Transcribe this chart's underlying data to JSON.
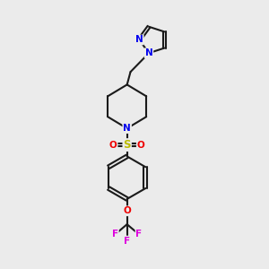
{
  "bg_color": "#ebebeb",
  "bond_color": "#1a1a1a",
  "N_color": "#0000ee",
  "O_color": "#ee0000",
  "S_color": "#bbbb00",
  "F_color": "#dd00dd",
  "bond_width": 1.5,
  "figsize": [
    3.0,
    3.0
  ],
  "dpi": 100,
  "xlim": [
    0,
    10
  ],
  "ylim": [
    0,
    10
  ]
}
